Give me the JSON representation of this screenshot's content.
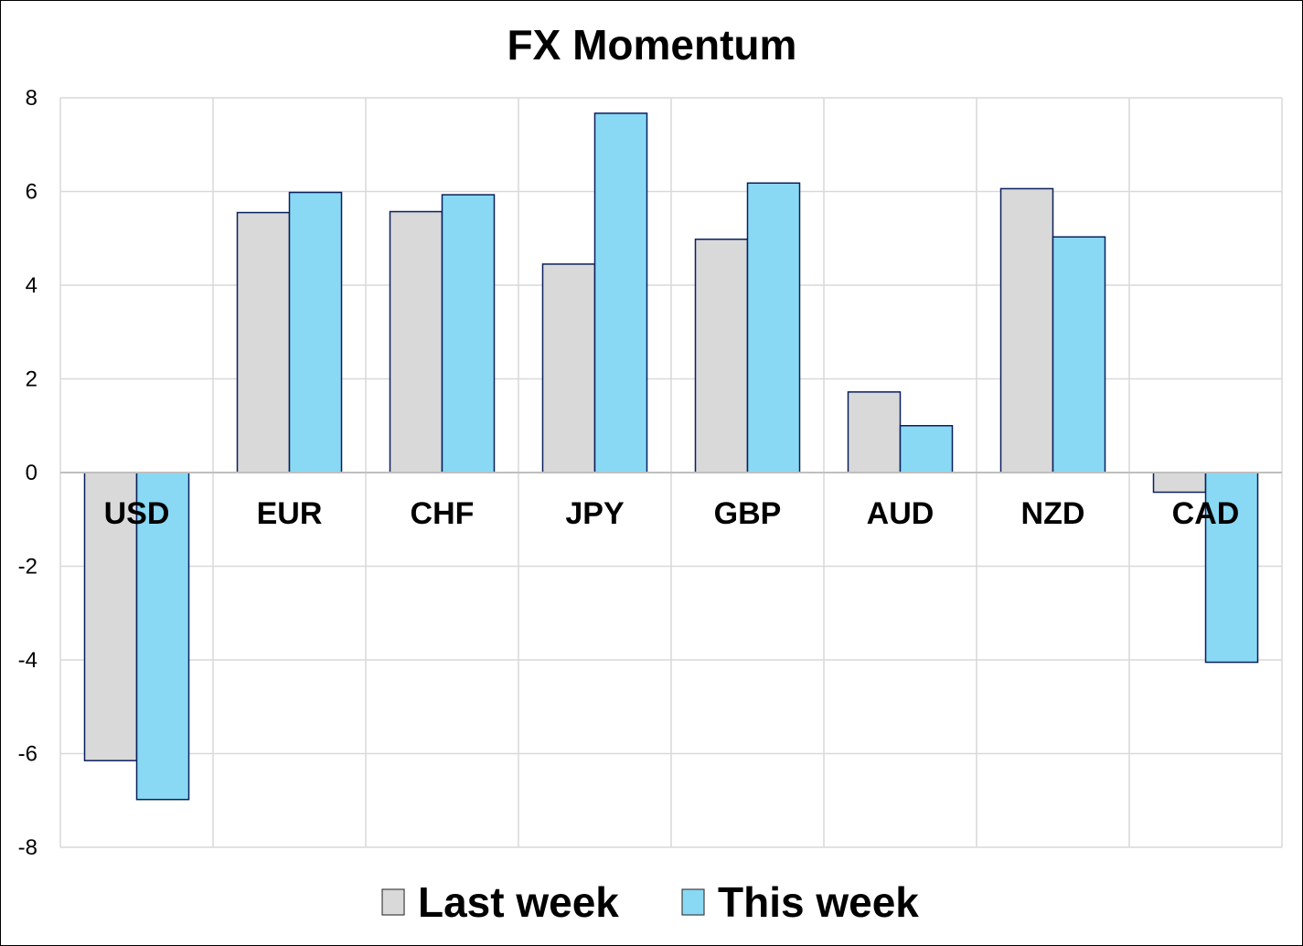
{
  "chart_data": {
    "type": "bar",
    "title": "FX Momentum",
    "xlabel": "",
    "ylabel": "",
    "categories": [
      "USD",
      "EUR",
      "CHF",
      "JPY",
      "GBP",
      "AUD",
      "NZD",
      "CAD"
    ],
    "series": [
      {
        "name": "Last week",
        "values": [
          -6.15,
          5.55,
          5.57,
          4.45,
          4.98,
          1.72,
          6.06,
          -0.42
        ],
        "color": "#d9d9d9"
      },
      {
        "name": "This week",
        "values": [
          -6.98,
          5.98,
          5.93,
          7.67,
          6.18,
          1.0,
          5.03,
          -4.05
        ],
        "color": "#89d9f5"
      }
    ],
    "ylim": [
      -8,
      8
    ],
    "yticks": [
      -8,
      -6,
      -4,
      -2,
      0,
      2,
      4,
      6,
      8
    ],
    "grid": true,
    "legend_position": "bottom",
    "bar_border_color": "#0a1f5c",
    "grid_color": "#d9d9d9",
    "axis_color": "#bfbfbf"
  }
}
